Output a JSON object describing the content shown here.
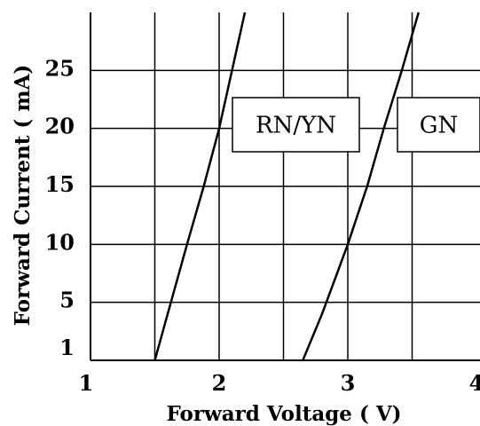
{
  "chart_data": {
    "type": "line",
    "title": "",
    "xlabel": "Forward Voltage ( V)",
    "ylabel": "Forward Current ( mA)",
    "xlim": [
      1,
      4
    ],
    "ylim": [
      0,
      30
    ],
    "x_ticks": [
      1,
      2,
      3,
      4
    ],
    "x_tick_labels": [
      "1",
      "2",
      "3",
      "4"
    ],
    "y_ticks": [
      1,
      5,
      10,
      15,
      20,
      25
    ],
    "y_tick_labels": [
      "1",
      "5",
      "10",
      "15",
      "20",
      "25"
    ],
    "grid": true,
    "series": [
      {
        "name": "RN/YN",
        "x": [
          1.5,
          1.6,
          1.75,
          1.88,
          2.0,
          2.1,
          2.2
        ],
        "y": [
          0,
          4,
          10,
          15,
          20,
          25,
          30
        ]
      },
      {
        "name": "GN",
        "x": [
          2.65,
          2.8,
          3.0,
          3.15,
          3.28,
          3.42,
          3.55
        ],
        "y": [
          0,
          4,
          10,
          15,
          20,
          25,
          30
        ]
      }
    ],
    "colors": {
      "line": "#000000",
      "grid": "#000000",
      "background": "#ffffff"
    }
  }
}
